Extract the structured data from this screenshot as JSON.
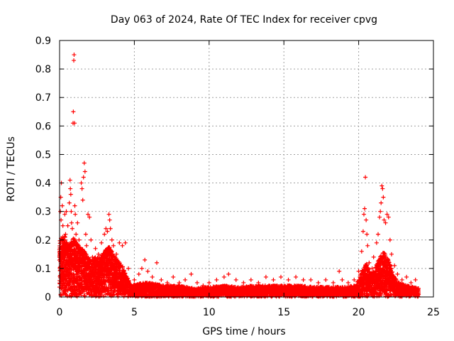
{
  "chart_data": {
    "type": "scatter",
    "title": "Day 063 of 2024, Rate Of TEC Index for receiver cpvg",
    "xlabel": "GPS time / hours",
    "ylabel": "ROTI / TECUs",
    "xlim": [
      0,
      25
    ],
    "ylim": [
      0,
      0.9
    ],
    "xticks": [
      "0",
      "5",
      "10",
      "15",
      "20",
      "25"
    ],
    "yticks": [
      "0",
      "0.1",
      "0.2",
      "0.3",
      "0.4",
      "0.5",
      "0.6",
      "0.7",
      "0.8",
      "0.9"
    ],
    "grid": true,
    "marker": "+",
    "series": [
      {
        "name": "ROTI",
        "color": "#ff0000",
        "points": [
          [
            0.05,
            0.3
          ],
          [
            0.08,
            0.35
          ],
          [
            0.1,
            0.27
          ],
          [
            0.12,
            0.4
          ],
          [
            0.15,
            0.2
          ],
          [
            0.18,
            0.32
          ],
          [
            0.2,
            0.1
          ],
          [
            0.22,
            0.25
          ],
          [
            0.3,
            0.15
          ],
          [
            0.35,
            0.29
          ],
          [
            0.4,
            0.22
          ],
          [
            0.45,
            0.3
          ],
          [
            0.5,
            0.12
          ],
          [
            0.55,
            0.25
          ],
          [
            0.6,
            0.08
          ],
          [
            0.65,
            0.33
          ],
          [
            0.7,
            0.41
          ],
          [
            0.72,
            0.38
          ],
          [
            0.75,
            0.36
          ],
          [
            0.78,
            0.3
          ],
          [
            0.8,
            0.26
          ],
          [
            0.85,
            0.24
          ],
          [
            0.9,
            0.61
          ],
          [
            0.92,
            0.65
          ],
          [
            0.95,
            0.83
          ],
          [
            0.97,
            0.85
          ],
          [
            1.0,
            0.61
          ],
          [
            1.02,
            0.32
          ],
          [
            1.05,
            0.29
          ],
          [
            1.1,
            0.22
          ],
          [
            1.15,
            0.18
          ],
          [
            1.2,
            0.26
          ],
          [
            1.3,
            0.2
          ],
          [
            1.4,
            0.16
          ],
          [
            1.45,
            0.4
          ],
          [
            1.5,
            0.38
          ],
          [
            1.55,
            0.34
          ],
          [
            1.6,
            0.42
          ],
          [
            1.65,
            0.47
          ],
          [
            1.7,
            0.44
          ],
          [
            1.75,
            0.22
          ],
          [
            1.8,
            0.18
          ],
          [
            1.9,
            0.29
          ],
          [
            2.0,
            0.28
          ],
          [
            2.1,
            0.2
          ],
          [
            2.2,
            0.14
          ],
          [
            2.4,
            0.17
          ],
          [
            2.6,
            0.15
          ],
          [
            2.8,
            0.19
          ],
          [
            3.0,
            0.22
          ],
          [
            3.1,
            0.24
          ],
          [
            3.2,
            0.23
          ],
          [
            3.3,
            0.29
          ],
          [
            3.35,
            0.27
          ],
          [
            3.4,
            0.24
          ],
          [
            3.5,
            0.2
          ],
          [
            3.6,
            0.18
          ],
          [
            3.8,
            0.15
          ],
          [
            4.0,
            0.19
          ],
          [
            4.2,
            0.18
          ],
          [
            4.4,
            0.19
          ],
          [
            4.6,
            0.1
          ],
          [
            5.0,
            0.06
          ],
          [
            5.3,
            0.08
          ],
          [
            5.5,
            0.1
          ],
          [
            5.7,
            0.13
          ],
          [
            5.9,
            0.09
          ],
          [
            6.2,
            0.07
          ],
          [
            6.5,
            0.12
          ],
          [
            6.8,
            0.06
          ],
          [
            7.2,
            0.05
          ],
          [
            7.6,
            0.07
          ],
          [
            8.0,
            0.05
          ],
          [
            8.4,
            0.06
          ],
          [
            8.8,
            0.08
          ],
          [
            9.2,
            0.05
          ],
          [
            9.6,
            0.04
          ],
          [
            10.0,
            0.05
          ],
          [
            10.5,
            0.06
          ],
          [
            11.0,
            0.07
          ],
          [
            11.3,
            0.08
          ],
          [
            11.8,
            0.06
          ],
          [
            12.3,
            0.05
          ],
          [
            12.8,
            0.06
          ],
          [
            13.3,
            0.05
          ],
          [
            13.8,
            0.07
          ],
          [
            14.3,
            0.06
          ],
          [
            14.8,
            0.07
          ],
          [
            15.3,
            0.06
          ],
          [
            15.8,
            0.07
          ],
          [
            16.3,
            0.06
          ],
          [
            16.8,
            0.06
          ],
          [
            17.3,
            0.05
          ],
          [
            17.8,
            0.06
          ],
          [
            18.3,
            0.05
          ],
          [
            18.7,
            0.09
          ],
          [
            18.9,
            0.06
          ],
          [
            19.3,
            0.05
          ],
          [
            19.7,
            0.06
          ],
          [
            20.0,
            0.09
          ],
          [
            20.2,
            0.16
          ],
          [
            20.3,
            0.23
          ],
          [
            20.35,
            0.29
          ],
          [
            20.4,
            0.31
          ],
          [
            20.45,
            0.42
          ],
          [
            20.5,
            0.27
          ],
          [
            20.55,
            0.22
          ],
          [
            20.6,
            0.18
          ],
          [
            20.7,
            0.12
          ],
          [
            20.9,
            0.1
          ],
          [
            21.0,
            0.14
          ],
          [
            21.2,
            0.19
          ],
          [
            21.3,
            0.22
          ],
          [
            21.4,
            0.28
          ],
          [
            21.45,
            0.3
          ],
          [
            21.5,
            0.33
          ],
          [
            21.55,
            0.39
          ],
          [
            21.6,
            0.38
          ],
          [
            21.65,
            0.35
          ],
          [
            21.7,
            0.27
          ],
          [
            21.8,
            0.26
          ],
          [
            21.9,
            0.29
          ],
          [
            22.0,
            0.28
          ],
          [
            22.1,
            0.2
          ],
          [
            22.2,
            0.15
          ],
          [
            22.4,
            0.11
          ],
          [
            22.6,
            0.08
          ],
          [
            22.9,
            0.06
          ],
          [
            23.2,
            0.07
          ],
          [
            23.5,
            0.05
          ],
          [
            23.8,
            0.06
          ],
          [
            24.0,
            0.03
          ]
        ],
        "envelope": [
          [
            0.0,
            0.2
          ],
          [
            0.3,
            0.22
          ],
          [
            0.6,
            0.18
          ],
          [
            0.9,
            0.21
          ],
          [
            1.2,
            0.19
          ],
          [
            1.5,
            0.17
          ],
          [
            1.8,
            0.15
          ],
          [
            2.1,
            0.13
          ],
          [
            2.4,
            0.14
          ],
          [
            2.7,
            0.14
          ],
          [
            3.0,
            0.16
          ],
          [
            3.3,
            0.18
          ],
          [
            3.6,
            0.15
          ],
          [
            3.9,
            0.13
          ],
          [
            4.2,
            0.11
          ],
          [
            4.5,
            0.07
          ],
          [
            4.8,
            0.04
          ],
          [
            5.5,
            0.05
          ],
          [
            6.0,
            0.05
          ],
          [
            7.0,
            0.04
          ],
          [
            8.0,
            0.04
          ],
          [
            9.0,
            0.03
          ],
          [
            10.0,
            0.035
          ],
          [
            11.0,
            0.04
          ],
          [
            12.0,
            0.035
          ],
          [
            13.0,
            0.04
          ],
          [
            14.0,
            0.04
          ],
          [
            15.0,
            0.04
          ],
          [
            16.0,
            0.04
          ],
          [
            17.0,
            0.035
          ],
          [
            18.0,
            0.035
          ],
          [
            19.0,
            0.035
          ],
          [
            19.8,
            0.04
          ],
          [
            20.2,
            0.09
          ],
          [
            20.5,
            0.12
          ],
          [
            20.8,
            0.08
          ],
          [
            21.1,
            0.1
          ],
          [
            21.4,
            0.14
          ],
          [
            21.7,
            0.16
          ],
          [
            22.0,
            0.13
          ],
          [
            22.3,
            0.08
          ],
          [
            22.7,
            0.05
          ],
          [
            23.2,
            0.04
          ],
          [
            23.7,
            0.035
          ],
          [
            24.0,
            0.03
          ]
        ]
      }
    ]
  }
}
